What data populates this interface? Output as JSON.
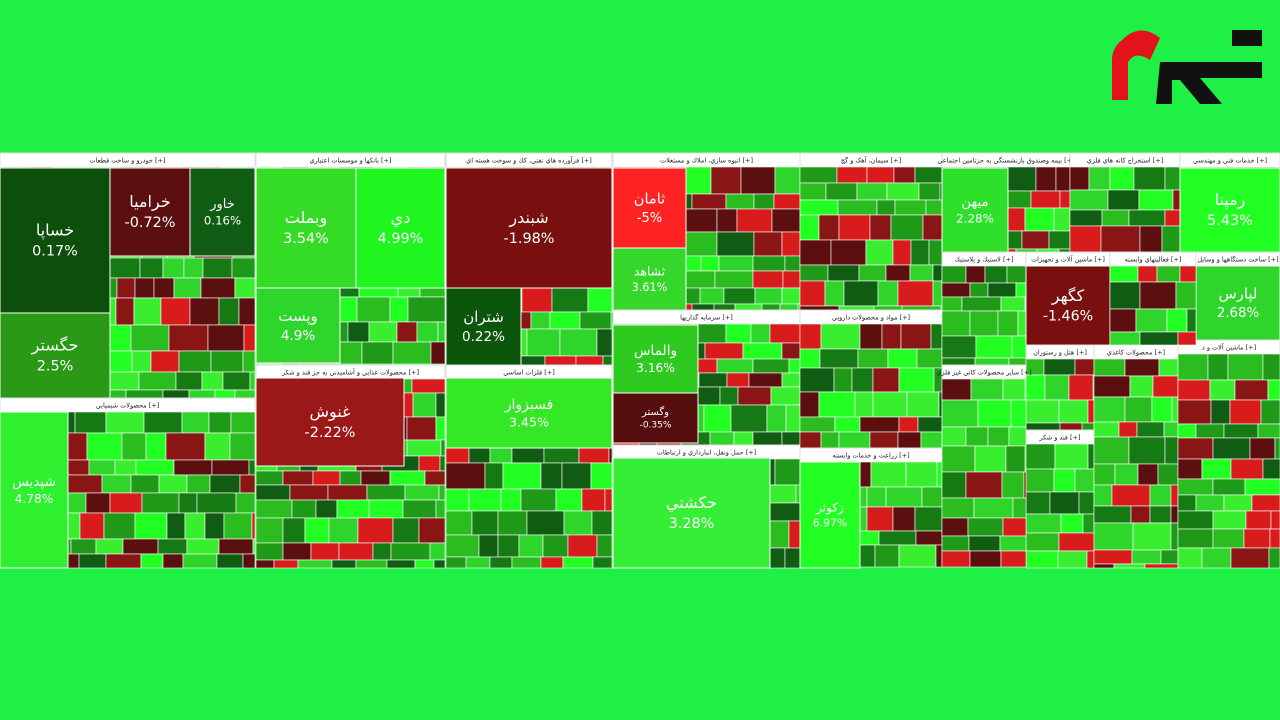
{
  "chart_data": {
    "type": "treemap",
    "sectors": [
      {
        "name": "خودرو و ساخت قطعات [+]",
        "tiles": [
          {
            "name": "خساپا",
            "value": 0.17,
            "value_label": "0.17%",
            "color": "#0b4f0b"
          },
          {
            "name": "حگستر",
            "value": 2.5,
            "value_label": "2.5%",
            "color": "#2a9a16"
          },
          {
            "name": "خراميا",
            "value": -0.72,
            "value_label": "-0.72%",
            "color": "#5c0f0f"
          },
          {
            "name": "خاور",
            "value": 0.16,
            "value_label": "0.16%",
            "color": "#0f5c12"
          }
        ]
      },
      {
        "name": "محصولات شيميايي [+]",
        "tiles": [
          {
            "name": "شپديس",
            "value": 4.78,
            "value_label": "4.78%",
            "color": "#2ef02e"
          }
        ]
      },
      {
        "name": "بانكها و موسسات اعتباري [+]",
        "tiles": [
          {
            "name": "وبملت",
            "value": 3.54,
            "value_label": "3.54%",
            "color": "#35dc25"
          },
          {
            "name": "دي",
            "value": 4.99,
            "value_label": "4.99%",
            "color": "#1ff51f"
          },
          {
            "name": "وپست",
            "value": 4.9,
            "value_label": "4.9%",
            "color": "#2ed52a"
          }
        ]
      },
      {
        "name": "محصولات غذايي و آشاميدني به جز قند و شكر [+]",
        "tiles": [
          {
            "name": "غنوش",
            "value": -2.22,
            "value_label": "-2.22%",
            "color": "#9b1818"
          }
        ]
      },
      {
        "name": "فرآورده هاي نفتي، كك و سوخت هسته اي [+]",
        "tiles": [
          {
            "name": "شبندر",
            "value": -1.98,
            "value_label": "-1.98%",
            "color": "#7a0f0f"
          },
          {
            "name": "شتران",
            "value": 0.22,
            "value_label": "0.22%",
            "color": "#0c560c"
          }
        ]
      },
      {
        "name": "فلزات اساسي [+]",
        "tiles": [
          {
            "name": "فسبزوار",
            "value": 3.45,
            "value_label": "3.45%",
            "color": "#35e825"
          }
        ]
      },
      {
        "name": "انبوه سازي، املاك و مستغلات [+]",
        "tiles": [
          {
            "name": "ثامان",
            "value": -5,
            "value_label": "-5%",
            "color": "#ff2222"
          },
          {
            "name": "ثشاهد",
            "value": 3.61,
            "value_label": "3.61%",
            "color": "#35d82a"
          }
        ]
      },
      {
        "name": "سرمايه گذاريها [+]",
        "tiles": [
          {
            "name": "والماس",
            "value": 3.16,
            "value_label": "3.16%",
            "color": "#2fca20"
          },
          {
            "name": "وگستر",
            "value": -0.35,
            "value_label": "-0.35%",
            "color": "#560d0d"
          }
        ]
      },
      {
        "name": "حمل ونقل، انبارداري و ارتباطات [+]",
        "tiles": [
          {
            "name": "حكشتي",
            "value": 3.28,
            "value_label": "3.28%",
            "color": "#35ee35"
          }
        ]
      },
      {
        "name": "سيمان، آهک و گچ [+]",
        "tiles": []
      },
      {
        "name": "مواد و محصولات دارويي [+]",
        "tiles": []
      },
      {
        "name": "زراعت و خدمات وابسته [+]",
        "tiles": [
          {
            "name": "زكوثر",
            "value": 6.97,
            "value_label": "6.97%",
            "color": "#22ff22"
          }
        ]
      },
      {
        "name": "بيمه وصندوق بازنشستگي به جزتامين اجتماعي [+]",
        "tiles": [
          {
            "name": "ميهن",
            "value": 2.28,
            "value_label": "2.28%",
            "color": "#2ee02a"
          }
        ]
      },
      {
        "name": "استخراج كانه هاي فلزي [+]",
        "tiles": []
      },
      {
        "name": "خدمات فني و مهندسي [+]",
        "tiles": [
          {
            "name": "رمپنا",
            "value": 5.43,
            "value_label": "5.43%",
            "color": "#22ff22"
          }
        ]
      },
      {
        "name": "لاستيك و پلاستيك [+]",
        "tiles": []
      },
      {
        "name": "ماشين آلات و تجهيزات [+]",
        "tiles": [
          {
            "name": "كگهر",
            "value": -1.46,
            "value_label": "-1.46%",
            "color": "#7a0f0f"
          }
        ]
      },
      {
        "name": "ساخت دستگاهها و وسايل [+]",
        "tiles": [
          {
            "name": "لپارس",
            "value": 2.68,
            "value_label": "2.68%",
            "color": "#2ed52a"
          }
        ]
      },
      {
        "name": "هتل و رستوران [+]",
        "tiles": []
      },
      {
        "name": "قند و شكر [+]",
        "tiles": []
      },
      {
        "name": "محصولات كاغذي [+]",
        "tiles": []
      },
      {
        "name": "ماشين آلات و د [+]",
        "tiles": []
      },
      {
        "name": "ساير محصولات كاني غير فلزي [+]",
        "tiles": []
      },
      {
        "name": "فعاليتهاي وابسته [+]",
        "tiles": []
      }
    ]
  }
}
